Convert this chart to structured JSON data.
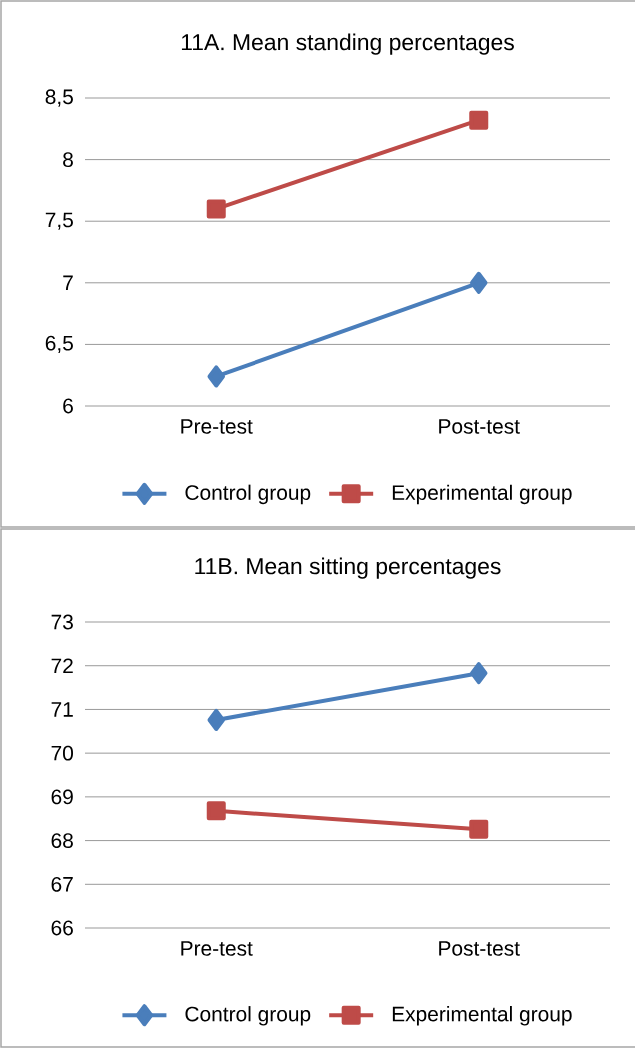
{
  "chart_data": [
    {
      "type": "line",
      "title": "11A. Mean standing percentages",
      "categories": [
        "Pre-test",
        "Post-test"
      ],
      "series": [
        {
          "name": "Control group",
          "color": "#4a7ebb",
          "marker": "diamond",
          "values": [
            6.24,
            7.0
          ]
        },
        {
          "name": "Experimental group",
          "color": "#be4b48",
          "marker": "square",
          "values": [
            7.6,
            8.32
          ]
        }
      ],
      "ylim": [
        6,
        8.5
      ],
      "yticks": [
        6,
        {
          "value": 6.5,
          "label": "6,5"
        },
        7,
        {
          "value": 7.5,
          "label": "7,5"
        },
        8,
        {
          "value": 8.5,
          "label": "8,5"
        }
      ],
      "grid": "y",
      "legend": "bottom",
      "line_style": "solid"
    },
    {
      "type": "line",
      "title": "11B. Mean sitting percentages",
      "categories": [
        "Pre-test",
        "Post-test"
      ],
      "series": [
        {
          "name": "Control group",
          "color": "#4a7ebb",
          "marker": "diamond",
          "values": [
            70.76,
            71.83
          ]
        },
        {
          "name": "Experimental group",
          "color": "#be4b48",
          "marker": "square",
          "values": [
            68.68,
            68.26
          ]
        }
      ],
      "ylim": [
        66,
        73
      ],
      "yticks": [
        66,
        67,
        68,
        69,
        70,
        71,
        72,
        73
      ],
      "grid": "y",
      "legend": "bottom",
      "line_style": "solid"
    }
  ]
}
